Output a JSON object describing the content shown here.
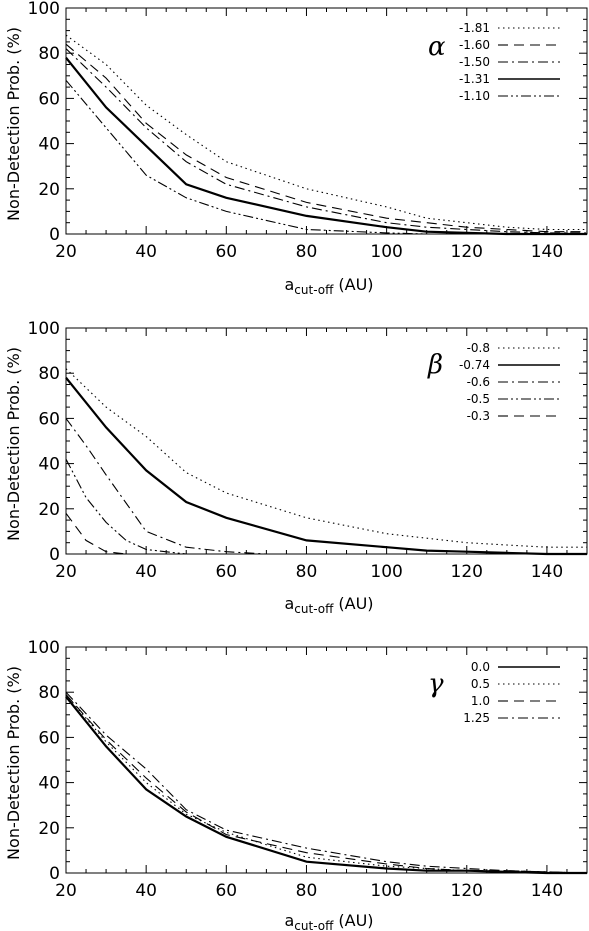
{
  "figure": {
    "panels": [
      {
        "symbol": "α",
        "xlabel_main": "a",
        "xlabel_sub": "cut-off",
        "xlabel_unit": "(AU)",
        "ylabel": "Non-Detection Prob. (%)"
      },
      {
        "symbol": "β",
        "xlabel_main": "a",
        "xlabel_sub": "cut-off",
        "xlabel_unit": "(AU)",
        "ylabel": "Non-Detection Prob. (%)"
      },
      {
        "symbol": "γ",
        "xlabel_main": "a",
        "xlabel_sub": "cut-off",
        "xlabel_unit": "(AU)",
        "ylabel": "Non-Detection Prob. (%)"
      }
    ]
  },
  "chart_data": [
    {
      "type": "line",
      "title": "α",
      "xlabel": "a_cut-off (AU)",
      "ylabel": "Non-Detection Prob. (%)",
      "xlim": [
        20,
        150
      ],
      "ylim": [
        0,
        100
      ],
      "x_ticks": [
        20,
        40,
        60,
        80,
        100,
        120,
        140
      ],
      "y_ticks": [
        0,
        20,
        40,
        60,
        80,
        100
      ],
      "grid": false,
      "legend_position": "top-right",
      "series": [
        {
          "name": "-1.81",
          "style": "dotted",
          "color": "#000000",
          "x": [
            20,
            30,
            40,
            50,
            60,
            80,
            100,
            110,
            120,
            130,
            140,
            150
          ],
          "y": [
            88,
            75,
            57,
            44,
            32,
            20,
            12,
            7,
            5,
            3,
            2,
            2
          ]
        },
        {
          "name": "-1.60",
          "style": "dashed",
          "color": "#000000",
          "x": [
            20,
            30,
            40,
            50,
            60,
            80,
            100,
            110,
            120,
            130,
            140,
            150
          ],
          "y": [
            84,
            69,
            49,
            35,
            25,
            14,
            7,
            5,
            3,
            2,
            1,
            1
          ]
        },
        {
          "name": "-1.50",
          "style": "dashdot",
          "color": "#000000",
          "x": [
            20,
            30,
            40,
            50,
            60,
            80,
            100,
            110,
            120,
            130,
            140,
            150
          ],
          "y": [
            82,
            65,
            47,
            32,
            22,
            12,
            5,
            3,
            2,
            1,
            0.5,
            0.5
          ]
        },
        {
          "name": "-1.31",
          "style": "solid-thick",
          "color": "#000000",
          "x": [
            20,
            30,
            40,
            50,
            60,
            80,
            100,
            110,
            120,
            130,
            140,
            150
          ],
          "y": [
            78,
            56,
            39,
            22,
            16,
            8,
            3,
            1,
            0.5,
            0,
            0,
            0
          ]
        },
        {
          "name": "-1.10",
          "style": "dashdotdot",
          "color": "#000000",
          "x": [
            20,
            30,
            40,
            50,
            60,
            80,
            100,
            110,
            120,
            130,
            140,
            150
          ],
          "y": [
            68,
            47,
            26,
            16,
            10,
            2,
            0.5,
            0,
            0,
            0,
            0,
            0
          ]
        }
      ]
    },
    {
      "type": "line",
      "title": "β",
      "xlabel": "a_cut-off (AU)",
      "ylabel": "Non-Detection Prob. (%)",
      "xlim": [
        20,
        150
      ],
      "ylim": [
        0,
        100
      ],
      "x_ticks": [
        20,
        40,
        60,
        80,
        100,
        120,
        140
      ],
      "y_ticks": [
        0,
        20,
        40,
        60,
        80,
        100
      ],
      "grid": false,
      "legend_position": "top-right",
      "series": [
        {
          "name": "-0.8",
          "style": "dotted",
          "color": "#000000",
          "x": [
            20,
            30,
            40,
            50,
            60,
            80,
            100,
            110,
            120,
            130,
            140,
            150
          ],
          "y": [
            82,
            65,
            52,
            36,
            27,
            16,
            9,
            7,
            5,
            4,
            3,
            3
          ]
        },
        {
          "name": "-0.74",
          "style": "solid-thick",
          "color": "#000000",
          "x": [
            20,
            30,
            40,
            50,
            60,
            80,
            100,
            110,
            120,
            130,
            140,
            150
          ],
          "y": [
            78,
            56,
            37,
            23,
            16,
            6,
            3,
            1.5,
            1,
            0.5,
            0,
            0
          ]
        },
        {
          "name": "-0.6",
          "style": "dashdot",
          "color": "#000000",
          "x": [
            20,
            25,
            30,
            40,
            50,
            60,
            70,
            150
          ],
          "y": [
            60,
            48,
            35,
            10,
            3,
            1,
            0,
            0
          ]
        },
        {
          "name": "-0.5",
          "style": "dashdotdot",
          "color": "#000000",
          "x": [
            20,
            25,
            30,
            35,
            40,
            50,
            150
          ],
          "y": [
            42,
            25,
            14,
            6,
            2,
            0,
            0
          ]
        },
        {
          "name": "-0.3",
          "style": "dashed",
          "color": "#000000",
          "x": [
            20,
            25,
            30,
            35,
            150
          ],
          "y": [
            18,
            6,
            1,
            0,
            0
          ]
        }
      ]
    },
    {
      "type": "line",
      "title": "γ",
      "xlabel": "a_cut-off (AU)",
      "ylabel": "Non-Detection Prob. (%)",
      "xlim": [
        20,
        150
      ],
      "ylim": [
        0,
        100
      ],
      "x_ticks": [
        20,
        40,
        60,
        80,
        100,
        120,
        140
      ],
      "y_ticks": [
        0,
        20,
        40,
        60,
        80,
        100
      ],
      "grid": false,
      "legend_position": "top-right",
      "series": [
        {
          "name": "0.0",
          "style": "solid-thick",
          "color": "#000000",
          "x": [
            20,
            30,
            40,
            50,
            60,
            80,
            100,
            110,
            120,
            130,
            140,
            150
          ],
          "y": [
            78,
            56,
            37,
            25,
            16,
            5,
            2,
            1,
            1,
            0.5,
            0,
            0
          ]
        },
        {
          "name": "0.5",
          "style": "dotted",
          "color": "#000000",
          "x": [
            20,
            30,
            40,
            50,
            60,
            80,
            100,
            110,
            120,
            130,
            140,
            150
          ],
          "y": [
            79,
            58,
            40,
            26,
            18,
            7,
            3,
            2,
            1,
            0.5,
            0,
            0
          ]
        },
        {
          "name": "1.0",
          "style": "dashed",
          "color": "#000000",
          "x": [
            20,
            30,
            40,
            50,
            60,
            80,
            100,
            110,
            120,
            130,
            140,
            150
          ],
          "y": [
            79,
            59,
            42,
            27,
            17,
            9,
            4,
            2,
            1,
            1,
            0.5,
            0
          ]
        },
        {
          "name": "1.25",
          "style": "dashdot",
          "color": "#000000",
          "x": [
            20,
            30,
            40,
            50,
            60,
            80,
            100,
            110,
            120,
            130,
            140,
            150
          ],
          "y": [
            80,
            61,
            46,
            28,
            19,
            11,
            5,
            3,
            2,
            1,
            0.5,
            0
          ]
        }
      ]
    }
  ]
}
